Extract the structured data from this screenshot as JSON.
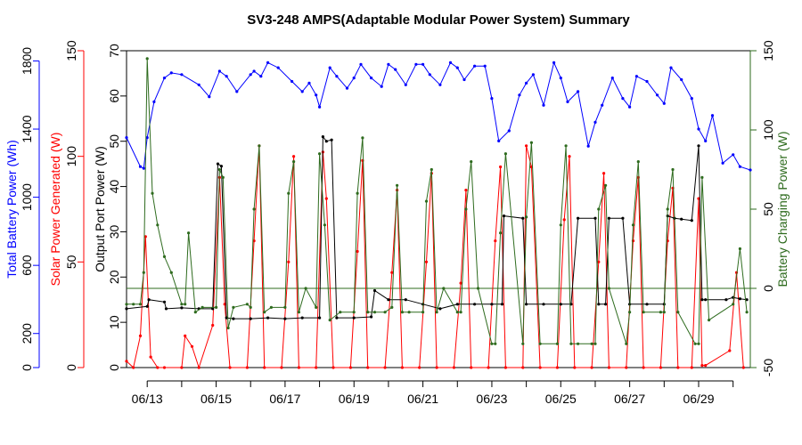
{
  "chart_data": {
    "type": "line",
    "title": "SV3-248 AMPS(Adaptable Modular Power System) Summary",
    "x_ticks": [
      "06/13",
      "06/15",
      "06/17",
      "06/19",
      "06/21",
      "06/23",
      "06/25",
      "06/27",
      "06/29"
    ],
    "x_range_days": [
      12.4,
      30.5
    ],
    "axes": [
      {
        "id": "battery",
        "label": "Total Battery Power (Wh)",
        "color": "#0000ff",
        "ylim": [
          0,
          1860
        ],
        "ticks": [
          0,
          200,
          600,
          1000,
          1400,
          1800
        ]
      },
      {
        "id": "solar",
        "label": "Solar Power Generated (W)",
        "color": "#ff0000",
        "ylim": [
          0,
          150
        ],
        "ticks": [
          0,
          50,
          100,
          150
        ]
      },
      {
        "id": "output",
        "label": "Output Port Power (W)",
        "color": "#000000",
        "ylim": [
          0,
          70
        ],
        "ticks": [
          0,
          10,
          20,
          30,
          40,
          50,
          60,
          70
        ]
      },
      {
        "id": "charging",
        "label": "Battery Charging Power (W)",
        "color": "#2e6b1e",
        "ylim": [
          -50,
          150
        ],
        "ticks": [
          -50,
          0,
          50,
          100,
          150
        ]
      }
    ],
    "series": [
      {
        "name": "Total Battery Power (Wh)",
        "axis": "battery",
        "color": "#0000ff",
        "x": [
          12.4,
          12.8,
          12.9,
          13.0,
          13.2,
          13.5,
          13.7,
          14.0,
          14.5,
          14.8,
          15.1,
          15.3,
          15.6,
          16.0,
          16.1,
          16.3,
          16.5,
          16.8,
          17.2,
          17.5,
          17.7,
          17.9,
          18.0,
          18.3,
          18.5,
          18.8,
          19.0,
          19.2,
          19.5,
          19.8,
          20.0,
          20.2,
          20.5,
          20.8,
          21.0,
          21.2,
          21.5,
          21.8,
          22.0,
          22.2,
          22.5,
          22.8,
          23.0,
          23.2,
          23.5,
          23.8,
          24.0,
          24.2,
          24.5,
          24.8,
          25.0,
          25.2,
          25.5,
          25.8,
          26.0,
          26.2,
          26.5,
          26.8,
          27.0,
          27.2,
          27.5,
          27.8,
          28.0,
          28.2,
          28.5,
          28.8,
          29.0,
          29.2,
          29.4,
          29.7,
          30.0,
          30.2,
          30.5
        ],
        "y": [
          1350,
          1180,
          1170,
          1350,
          1560,
          1700,
          1730,
          1720,
          1660,
          1590,
          1740,
          1710,
          1620,
          1720,
          1740,
          1710,
          1790,
          1760,
          1680,
          1620,
          1670,
          1600,
          1530,
          1760,
          1710,
          1640,
          1700,
          1780,
          1700,
          1650,
          1780,
          1750,
          1660,
          1780,
          1780,
          1720,
          1660,
          1790,
          1760,
          1690,
          1770,
          1770,
          1580,
          1330,
          1390,
          1600,
          1670,
          1720,
          1540,
          1790,
          1700,
          1560,
          1620,
          1300,
          1440,
          1540,
          1700,
          1580,
          1530,
          1710,
          1680,
          1600,
          1550,
          1760,
          1690,
          1580,
          1400,
          1330,
          1480,
          1200,
          1250,
          1180,
          1160
        ]
      },
      {
        "name": "Solar Power Generated (W)",
        "axis": "solar",
        "color": "#ff0000",
        "x": [
          12.4,
          12.6,
          12.8,
          12.95,
          13.1,
          13.3,
          13.5,
          14.0,
          14.1,
          14.3,
          14.5,
          14.9,
          15.1,
          15.25,
          15.4,
          15.9,
          16.1,
          16.25,
          16.4,
          16.9,
          17.1,
          17.25,
          17.4,
          17.9,
          18.1,
          18.2,
          18.4,
          18.9,
          19.1,
          19.25,
          19.4,
          19.9,
          20.1,
          20.25,
          20.4,
          20.9,
          21.1,
          21.25,
          21.4,
          21.9,
          22.1,
          22.25,
          22.4,
          22.9,
          23.1,
          23.25,
          23.4,
          23.9,
          24.0,
          24.15,
          24.4,
          24.9,
          25.1,
          25.25,
          25.4,
          25.9,
          26.1,
          26.25,
          26.4,
          26.9,
          27.1,
          27.25,
          27.4,
          27.9,
          28.1,
          28.25,
          28.4,
          28.8,
          29.0,
          29.1,
          29.2,
          29.9,
          30.1,
          30.3
        ],
        "y": [
          3,
          0,
          15,
          62,
          5,
          0,
          0,
          0,
          15,
          10,
          0,
          20,
          90,
          30,
          0,
          0,
          60,
          105,
          0,
          0,
          50,
          100,
          0,
          0,
          102,
          80,
          0,
          0,
          55,
          98,
          0,
          0,
          45,
          84,
          0,
          0,
          50,
          92,
          0,
          0,
          40,
          84,
          0,
          0,
          60,
          95,
          0,
          0,
          105,
          95,
          0,
          0,
          70,
          100,
          0,
          0,
          50,
          92,
          0,
          0,
          60,
          90,
          0,
          0,
          60,
          85,
          0,
          0,
          80,
          1,
          1,
          8,
          45,
          0
        ]
      },
      {
        "name": "Output Port Power (W)",
        "axis": "output",
        "color": "#000000",
        "x": [
          12.4,
          13.0,
          13.05,
          13.5,
          13.55,
          14.0,
          14.5,
          14.9,
          15.05,
          15.15,
          15.3,
          15.5,
          16.0,
          16.5,
          17.0,
          17.5,
          18.0,
          18.1,
          18.2,
          18.35,
          18.5,
          19.0,
          19.5,
          19.6,
          20.0,
          20.5,
          21.0,
          21.5,
          22.0,
          22.5,
          23.0,
          23.3,
          23.35,
          23.9,
          24.0,
          24.5,
          25.0,
          25.3,
          25.5,
          26.0,
          26.1,
          26.3,
          26.4,
          26.8,
          27.0,
          27.5,
          28.0,
          28.1,
          28.3,
          28.5,
          28.8,
          29.0,
          29.1,
          29.2,
          29.8,
          30.0,
          30.2,
          30.4
        ],
        "y": [
          13,
          13.5,
          15,
          14.5,
          13,
          13.2,
          13,
          13,
          45,
          44.5,
          11,
          10.8,
          10.8,
          11,
          10.8,
          11,
          11,
          51,
          50,
          50.3,
          11,
          11,
          11.2,
          17,
          15,
          15,
          14,
          13,
          14,
          14,
          14,
          14,
          33.5,
          33,
          14,
          14,
          14,
          14,
          33,
          33,
          14,
          14,
          33,
          33,
          14,
          14,
          14,
          33.5,
          33,
          32.8,
          32.5,
          49,
          15,
          15,
          15,
          15.5,
          15.2,
          15
        ]
      },
      {
        "name": "Battery Charging Power (W)",
        "axis": "charging",
        "color": "#2e6b1e",
        "x": [
          12.4,
          12.6,
          12.8,
          12.9,
          13.0,
          13.15,
          13.3,
          13.5,
          13.7,
          14.0,
          14.1,
          14.2,
          14.4,
          14.6,
          15.0,
          15.1,
          15.2,
          15.35,
          15.5,
          15.9,
          16.0,
          16.1,
          16.25,
          16.4,
          16.6,
          17.0,
          17.1,
          17.25,
          17.4,
          17.6,
          17.9,
          18.0,
          18.15,
          18.3,
          18.6,
          19.0,
          19.1,
          19.25,
          19.4,
          19.6,
          19.9,
          20.1,
          20.25,
          20.4,
          20.6,
          21.0,
          21.1,
          21.25,
          21.4,
          21.6,
          22.0,
          22.1,
          22.25,
          22.4,
          22.6,
          23.0,
          23.1,
          23.25,
          23.4,
          23.9,
          24.0,
          24.15,
          24.4,
          24.9,
          25.0,
          25.15,
          25.3,
          25.5,
          25.9,
          26.0,
          26.1,
          26.3,
          26.4,
          26.9,
          27.0,
          27.1,
          27.25,
          27.4,
          27.9,
          28.0,
          28.1,
          28.25,
          28.4,
          28.9,
          29.0,
          29.1,
          29.3,
          30.0,
          30.2,
          30.4
        ],
        "y": [
          -10,
          -10,
          -10,
          10,
          145,
          60,
          40,
          20,
          10,
          -10,
          -10,
          35,
          -15,
          -12,
          -12,
          75,
          70,
          -25,
          -12,
          -10,
          -12,
          50,
          90,
          -15,
          -12,
          -12,
          60,
          80,
          -15,
          0,
          -12,
          85,
          40,
          -20,
          -15,
          -15,
          60,
          95,
          -15,
          -15,
          -15,
          -12,
          65,
          -15,
          -15,
          -15,
          55,
          75,
          -15,
          0,
          -15,
          -15,
          50,
          80,
          0,
          -35,
          -35,
          35,
          85,
          -35,
          45,
          92,
          -35,
          -35,
          40,
          90,
          -35,
          -35,
          -35,
          -35,
          50,
          65,
          0,
          -35,
          -15,
          40,
          80,
          -15,
          -15,
          -15,
          50,
          75,
          -15,
          -35,
          -35,
          70,
          -20,
          -10,
          25,
          -15
        ]
      }
    ]
  }
}
